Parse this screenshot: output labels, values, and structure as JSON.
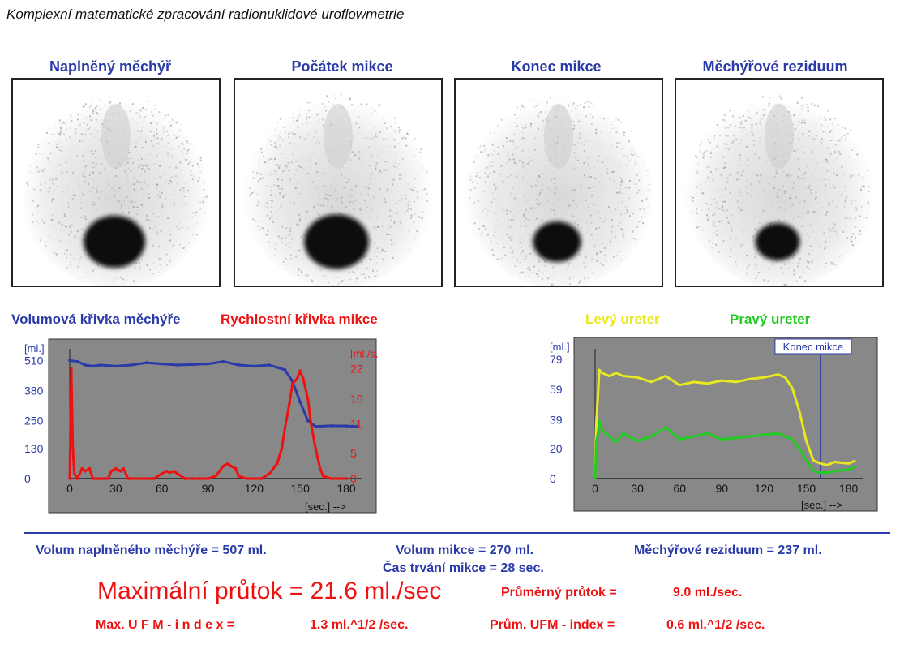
{
  "title": "Komplexní matematické zpracování radionuklidové uroflowmetrie",
  "images": [
    {
      "label": "Naplněný měchýř",
      "blob_scale": 1.0
    },
    {
      "label": "Počátek mikce",
      "blob_scale": 1.05
    },
    {
      "label": "Konec mikce",
      "blob_scale": 0.78
    },
    {
      "label": "Měchýřové reziduum",
      "blob_scale": 0.72
    }
  ],
  "legend_left": {
    "volume": "Volumová křivka měchýře",
    "speed": "Rychlostní křivka mikce"
  },
  "legend_right": {
    "left_ureter": "Levý ureter",
    "right_ureter": "Pravý ureter"
  },
  "colors": {
    "blue": "#2a3aa8",
    "red": "#ee1111",
    "yellow": "#e8e820",
    "green": "#22cc22",
    "panel": "#888888",
    "plot": "#9a9a9a"
  },
  "chart_data": [
    {
      "type": "line",
      "left_unit": "[ml.]",
      "right_unit": "[ml./s.]",
      "x_unit": "[sec.] -->",
      "x_ticks": [
        0,
        30,
        60,
        90,
        120,
        150,
        180
      ],
      "xlim": [
        0,
        190
      ],
      "y_left_ticks": [
        0,
        130,
        250,
        380,
        510
      ],
      "y_left_lim": [
        0,
        560
      ],
      "y_right_ticks": [
        0,
        5,
        11,
        16,
        22
      ],
      "y_right_lim": [
        0,
        26
      ],
      "series": [
        {
          "name": "Volumová křivka měchýře",
          "axis": "left",
          "x": [
            0,
            5,
            10,
            15,
            20,
            30,
            40,
            50,
            60,
            70,
            80,
            90,
            100,
            110,
            120,
            130,
            135,
            140,
            145,
            150,
            155,
            160,
            170,
            180,
            187
          ],
          "y": [
            510,
            505,
            490,
            485,
            490,
            485,
            490,
            500,
            495,
            490,
            492,
            495,
            505,
            490,
            485,
            490,
            480,
            470,
            420,
            330,
            250,
            225,
            228,
            227,
            225
          ]
        },
        {
          "name": "Rychlostní křivka mikce",
          "axis": "right",
          "x": [
            0,
            1,
            2,
            3,
            5,
            8,
            10,
            13,
            15,
            18,
            20,
            22,
            25,
            27,
            30,
            33,
            35,
            38,
            40,
            45,
            50,
            55,
            60,
            63,
            65,
            68,
            70,
            75,
            80,
            85,
            90,
            95,
            100,
            103,
            105,
            108,
            110,
            115,
            120,
            125,
            130,
            135,
            138,
            140,
            143,
            145,
            148,
            150,
            152,
            155,
            157,
            160,
            163,
            165,
            170,
            175,
            180
          ],
          "y": [
            0,
            22,
            6,
            1,
            0,
            2,
            1.5,
            2,
            0,
            0,
            0,
            0,
            0,
            1.5,
            2,
            1.5,
            2,
            0,
            0,
            0,
            0,
            0,
            1,
            1.5,
            1.2,
            1.5,
            1,
            0,
            0,
            0,
            0,
            0.5,
            2.5,
            3,
            2.5,
            2,
            0.5,
            0,
            0,
            0,
            1,
            3,
            6,
            10,
            15,
            19,
            20,
            21.6,
            20,
            16,
            11,
            6,
            2,
            0.5,
            0,
            0,
            0
          ]
        }
      ]
    },
    {
      "type": "line",
      "left_unit": "[ml.]",
      "x_unit": "[sec.] -->",
      "annotation": "Konec mikce",
      "annotation_x": 160,
      "x_ticks": [
        0,
        30,
        60,
        90,
        120,
        150,
        180
      ],
      "xlim": [
        0,
        190
      ],
      "y_left_ticks": [
        0,
        20,
        39,
        59,
        79
      ],
      "y_left_lim": [
        0,
        86
      ],
      "series": [
        {
          "name": "Levý ureter",
          "x": [
            0,
            1,
            2,
            3,
            5,
            10,
            15,
            20,
            30,
            40,
            50,
            60,
            70,
            80,
            90,
            100,
            110,
            120,
            130,
            135,
            140,
            145,
            150,
            155,
            160,
            165,
            170,
            180,
            185
          ],
          "y": [
            0,
            40,
            55,
            72,
            70,
            68,
            70,
            68,
            67,
            64,
            68,
            62,
            64,
            63,
            65,
            64,
            66,
            67,
            69,
            67,
            60,
            45,
            25,
            12,
            10,
            9,
            11,
            10,
            12
          ]
        },
        {
          "name": "Pravý ureter",
          "x": [
            0,
            1,
            2,
            3,
            5,
            10,
            15,
            20,
            30,
            40,
            50,
            60,
            70,
            80,
            90,
            100,
            110,
            120,
            130,
            135,
            140,
            145,
            150,
            155,
            160,
            165,
            170,
            180,
            185
          ],
          "y": [
            0,
            25,
            30,
            38,
            32,
            28,
            24,
            30,
            25,
            28,
            34,
            26,
            28,
            30,
            26,
            27,
            28,
            29,
            30,
            28,
            26,
            20,
            12,
            5,
            4,
            4,
            5,
            6,
            8
          ]
        }
      ]
    }
  ],
  "results": {
    "volume_full": "Volum naplněného měchýře  = 507 ml.",
    "volume_mict": "Volum mikce  = 270 ml.",
    "duration": "Čas trvání mikce  = 28 sec.",
    "residual": "Měchýřové reziduum  = 237 ml.",
    "max_flow": "Maximální průtok  =  21.6 ml./sec",
    "avg_flow_label": "Průměrný  průtok  =",
    "avg_flow_value": "9.0 ml./sec.",
    "max_ufm_label": "Max.  U F M  - i n d e x  =",
    "max_ufm_value": "1.3 ml.^1/2 /sec.",
    "avg_ufm_label": "Prům. UFM - index  =",
    "avg_ufm_value": "0.6 ml.^1/2 /sec."
  }
}
